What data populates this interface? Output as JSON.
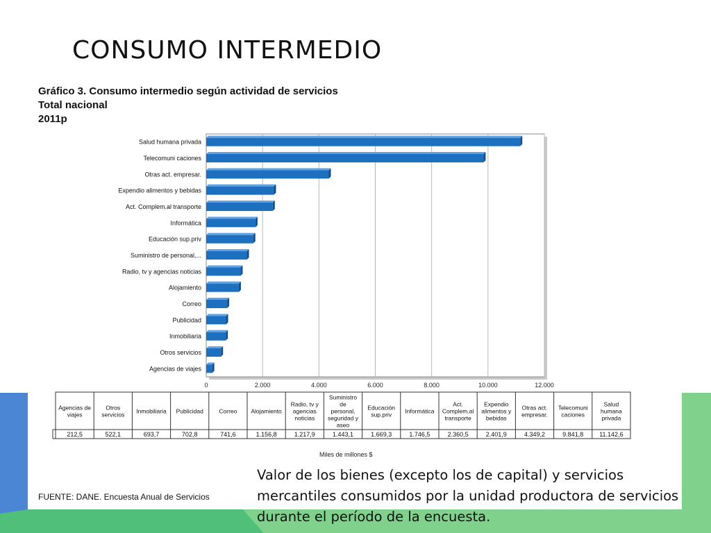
{
  "slide": {
    "title": "CONSUMO INTERMEDIO",
    "definition": "Valor de los bienes (excepto los de capital) y servicios mercantiles consumidos por la unidad productora de servicios durante el período de la encuesta.",
    "colors": {
      "accent_blue": "#4a86d4",
      "accent_green": "#7fd18c",
      "bar": "#1d6fc0"
    }
  },
  "chart_data": {
    "type": "bar",
    "orientation": "horizontal",
    "title": "Gráfico 3. Consumo intermedio según actividad de servicios",
    "subtitle": [
      "Total nacional",
      "2011p"
    ],
    "categories": [
      "Agencias de viajes",
      "Otros servicios",
      "Inmobiliaria",
      "Publicidad",
      "Correo",
      "Alojamiento",
      "Radio, tv y agencias noticias",
      "Suministro de personal,...",
      "Educación sup.priv",
      "Informática",
      "Act. Complem.al transporte",
      "Expendio alimentos y bebidas",
      "Otras act. empresar.",
      "Telecomuni caciones",
      "Salud humana privada"
    ],
    "values": [
      212.5,
      522.1,
      693.7,
      702.8,
      741.6,
      1156.8,
      1217.9,
      1443.1,
      1669.3,
      1746.5,
      2360.5,
      2401.9,
      4349.2,
      9841.8,
      11142.6
    ],
    "xlim": [
      0,
      12000
    ],
    "ticks": [
      "0",
      "2.000",
      "4.000",
      "6.000",
      "8.000",
      "10.000",
      "12.000"
    ],
    "xlabel": "Miles de millones $",
    "grid": true,
    "table": {
      "headers": [
        "Agencias de viajes",
        "Otros servicios",
        "Inmobiliaria",
        "Publicidad",
        "Correo",
        "Alojamiento",
        "Radio, tv y agencias noticias",
        "Suministro de personal, seguridad y aseo",
        "Educación sup.priv",
        "Informática",
        "Act. Complem.al transporte",
        "Expendio alimentos y bebidas",
        "Otras act. empresar.",
        "Telecomuni caciones",
        "Salud humana privada"
      ],
      "values": [
        "212,5",
        "522,1",
        "693,7",
        "702,8",
        "741,6",
        "1.156,8",
        "1.217,9",
        "1.443,1",
        "1.669,3",
        "1.746,5",
        "2.360,5",
        "2.401,9",
        "4.349,2",
        "9.841,8",
        "11.142,6"
      ]
    },
    "source": "FUENTE: DANE. Encuesta Anual de Servicios"
  }
}
